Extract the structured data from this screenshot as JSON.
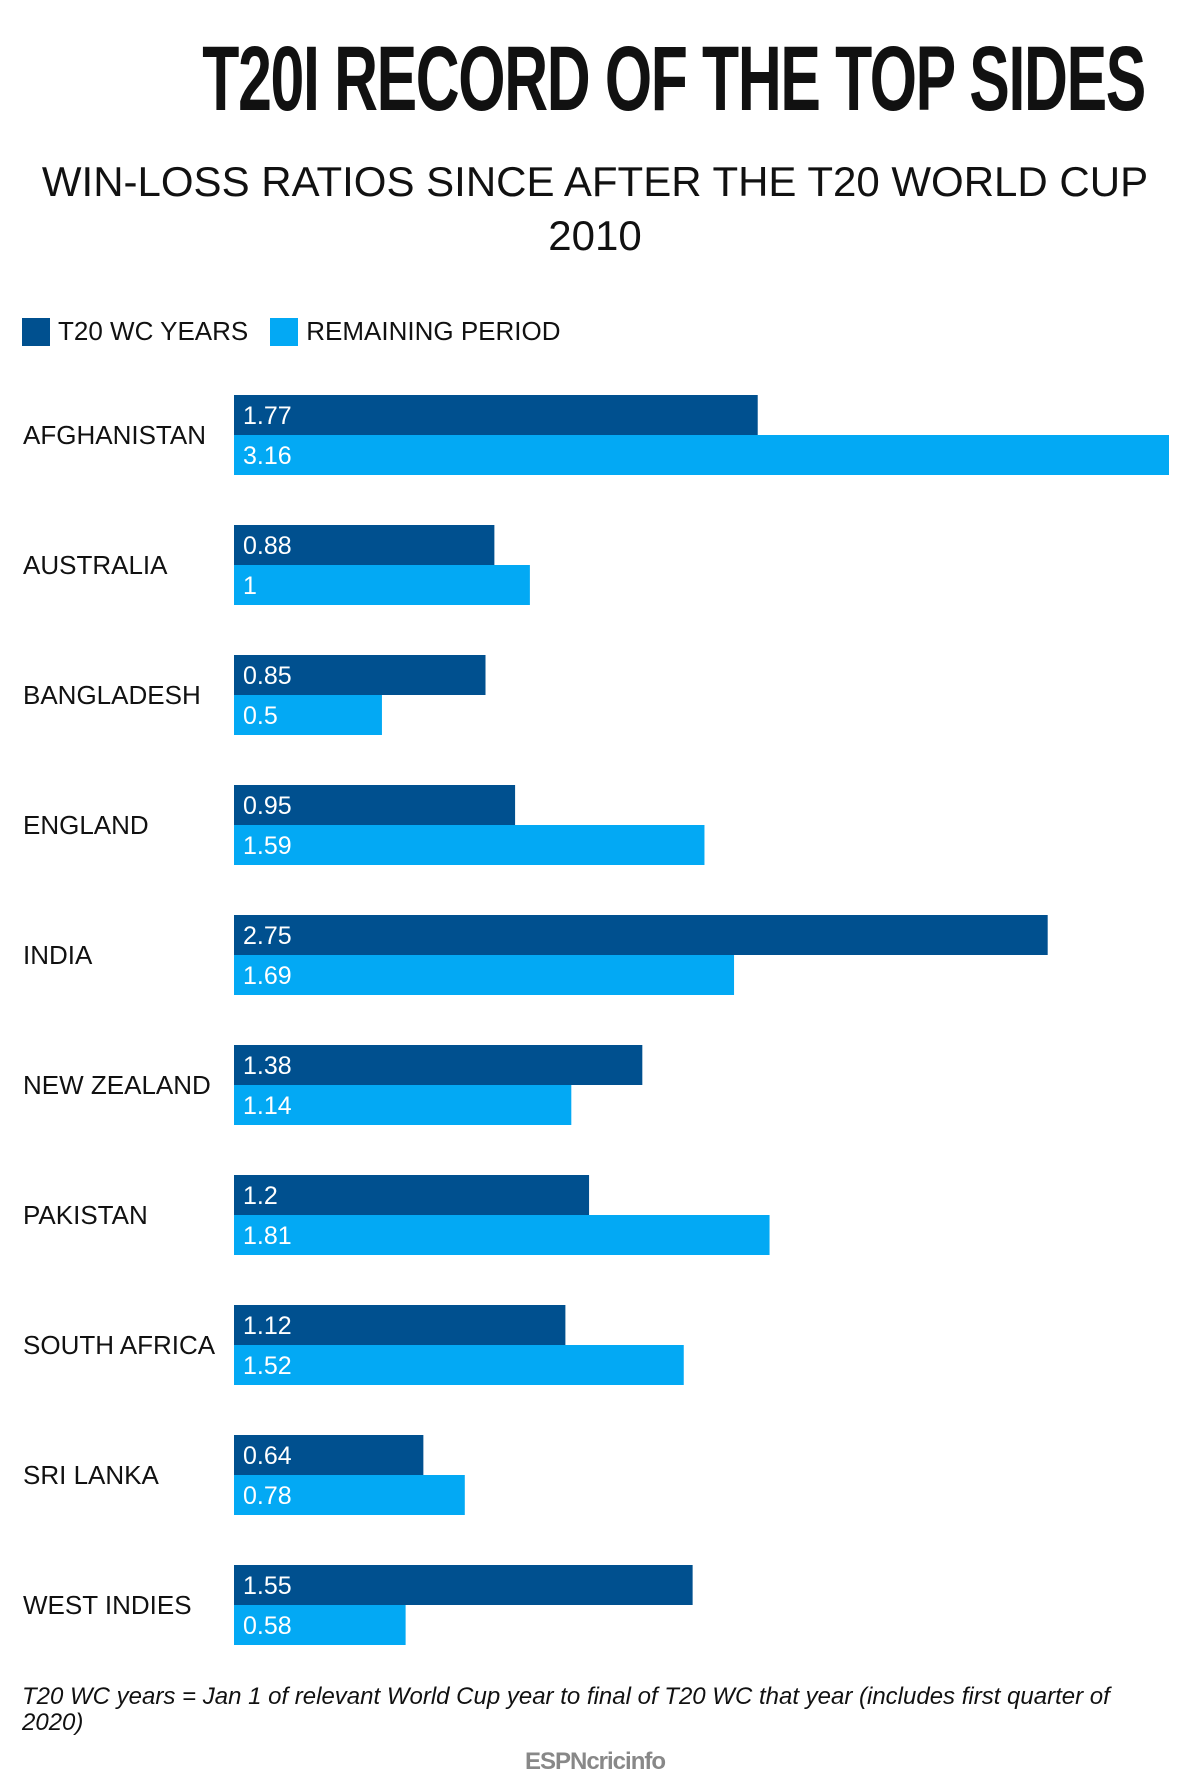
{
  "chart_data": {
    "type": "bar",
    "orientation": "horizontal",
    "title": "T20I RECORD OF THE TOP SIDES",
    "subtitle": "WIN-LOSS RATIOS SINCE AFTER THE T20 WORLD CUP 2010",
    "categories": [
      "AFGHANISTAN",
      "AUSTRALIA",
      "BANGLADESH",
      "ENGLAND",
      "INDIA",
      "NEW ZEALAND",
      "PAKISTAN",
      "SOUTH AFRICA",
      "SRI LANKA",
      "WEST INDIES"
    ],
    "series": [
      {
        "name": "T20 WC YEARS",
        "color": "#00508F",
        "values": [
          1.77,
          0.88,
          0.85,
          0.95,
          2.75,
          1.38,
          1.2,
          1.12,
          0.64,
          1.55
        ]
      },
      {
        "name": "REMAINING PERIOD",
        "color": "#03A9F4",
        "values": [
          3.16,
          1,
          0.5,
          1.59,
          1.69,
          1.14,
          1.81,
          1.52,
          0.78,
          0.58
        ]
      }
    ],
    "xlim": [
      0,
      3.16
    ],
    "grid": false,
    "legend": "top-left",
    "data_labels": true
  },
  "footnote": "T20 WC years = Jan 1 of relevant World Cup year to final of T20 WC that year (includes first quarter of 2020)",
  "logo": "ESPNcricinfo"
}
